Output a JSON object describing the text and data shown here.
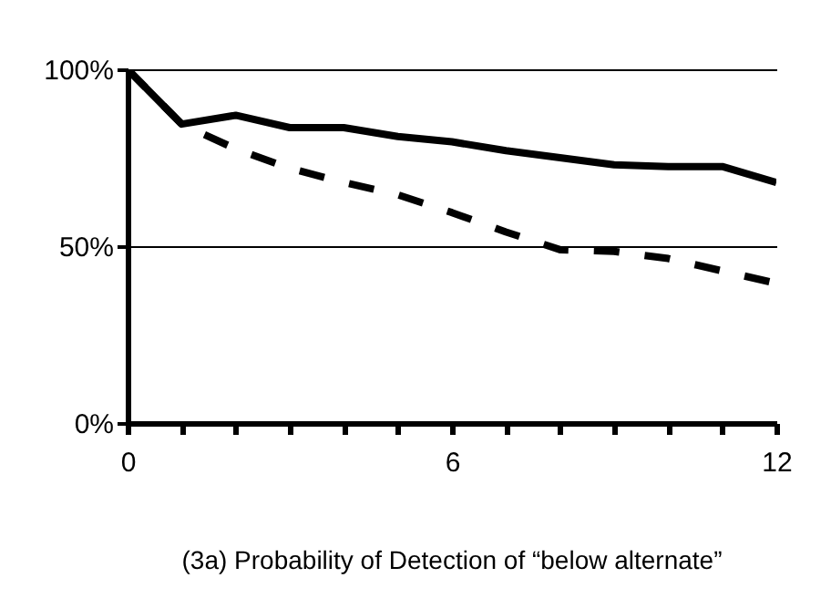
{
  "chart_data": {
    "type": "line",
    "title": "(3a)   Probability of Detection of “below alternate”",
    "x": [
      0,
      1,
      2,
      3,
      4,
      5,
      6,
      7,
      8,
      9,
      10,
      11,
      12
    ],
    "series": [
      {
        "color": "#000000",
        "line_style": "solid",
        "values": [
          100,
          84.5,
          87,
          83.5,
          83.5,
          81,
          79.5,
          77,
          75,
          73,
          72.5,
          72.5,
          68
        ]
      },
      {
        "color": "#000000",
        "line_style": "dashed",
        "values": [
          100,
          84.5,
          77.5,
          72,
          68,
          64.5,
          59.5,
          54,
          49,
          48.5,
          46.5,
          43,
          39.5
        ]
      }
    ],
    "xlim": [
      0,
      12
    ],
    "xticks": [
      0,
      {
        "value": 1,
        "label": null
      },
      {
        "value": 2,
        "label": null
      },
      {
        "value": 3,
        "label": null
      },
      {
        "value": 4,
        "label": null
      },
      {
        "value": 5,
        "label": null
      },
      6,
      {
        "value": 7,
        "label": null
      },
      {
        "value": 8,
        "label": null
      },
      {
        "value": 9,
        "label": null
      },
      {
        "value": 10,
        "label": null
      },
      {
        "value": 11,
        "label": null
      },
      12
    ],
    "ylim": [
      0,
      100
    ],
    "yticks": [
      {
        "value": 0,
        "label": "0%"
      },
      {
        "value": 50,
        "label": "50%"
      },
      {
        "value": 100,
        "label": "100%"
      }
    ],
    "grid": "y",
    "marker": "none"
  }
}
